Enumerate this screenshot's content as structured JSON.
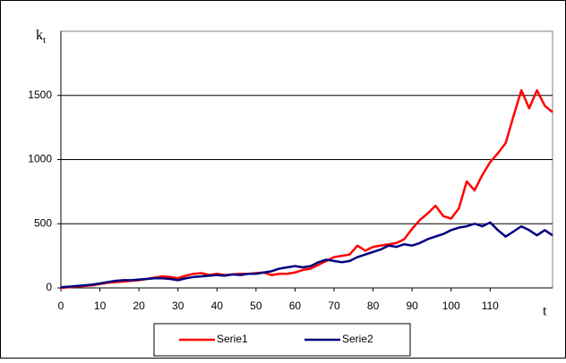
{
  "chart_data": {
    "type": "line",
    "y_label": "k",
    "y_label_subscript": "t",
    "x_label": "t",
    "x": [
      0,
      2,
      4,
      6,
      8,
      10,
      12,
      14,
      16,
      18,
      20,
      22,
      24,
      26,
      28,
      30,
      32,
      34,
      36,
      38,
      40,
      42,
      44,
      46,
      48,
      50,
      52,
      54,
      56,
      58,
      60,
      62,
      64,
      66,
      68,
      70,
      72,
      74,
      76,
      78,
      80,
      82,
      84,
      86,
      88,
      90,
      92,
      94,
      96,
      98,
      100,
      102,
      104,
      106,
      108,
      110,
      112,
      114,
      116,
      118,
      120,
      122,
      124,
      126
    ],
    "series": [
      {
        "name": "Serie1",
        "color": "#ff0000",
        "values": [
          0,
          5,
          10,
          15,
          20,
          30,
          40,
          45,
          50,
          55,
          60,
          70,
          80,
          90,
          85,
          75,
          95,
          110,
          115,
          100,
          110,
          100,
          105,
          110,
          110,
          115,
          120,
          100,
          110,
          110,
          120,
          140,
          150,
          180,
          210,
          240,
          250,
          260,
          330,
          290,
          320,
          330,
          340,
          350,
          380,
          460,
          530,
          580,
          640,
          560,
          540,
          620,
          830,
          760,
          880,
          980,
          1050,
          1130,
          1340,
          1540,
          1400,
          1540,
          1420,
          1370
        ]
      },
      {
        "name": "Serie2",
        "color": "#000080",
        "values": [
          5,
          10,
          15,
          20,
          25,
          35,
          45,
          55,
          60,
          60,
          65,
          70,
          75,
          75,
          70,
          60,
          75,
          85,
          90,
          95,
          100,
          95,
          105,
          100,
          110,
          110,
          120,
          130,
          150,
          160,
          170,
          160,
          170,
          200,
          220,
          210,
          200,
          210,
          240,
          260,
          280,
          300,
          330,
          320,
          340,
          330,
          350,
          380,
          400,
          420,
          450,
          470,
          480,
          500,
          480,
          510,
          450,
          400,
          440,
          480,
          450,
          410,
          450,
          410
        ]
      }
    ],
    "xlim": [
      0,
      126
    ],
    "xticks": [
      0,
      10,
      20,
      30,
      40,
      50,
      60,
      70,
      80,
      90,
      100,
      110
    ],
    "ylim": [
      0,
      2000
    ],
    "yticks": [
      0,
      500,
      1000,
      1500
    ],
    "grid": true,
    "legend": "bottom"
  }
}
